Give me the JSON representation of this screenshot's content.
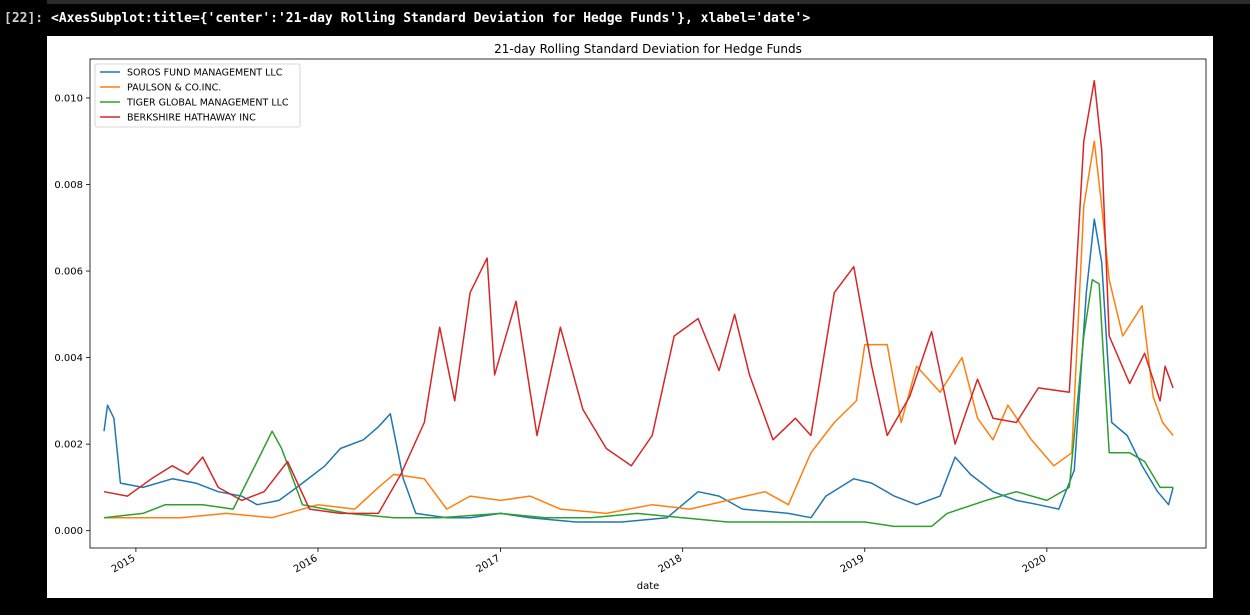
{
  "cell": {
    "prompt": "[22]:",
    "output": "<AxesSubplot:title={'center':'21-day Rolling Standard Deviation for Hedge Funds'}, xlabel='date'>"
  },
  "chart_data": {
    "type": "line",
    "title": "21-day Rolling Standard Deviation for Hedge Funds",
    "xlabel": "date",
    "ylabel": "",
    "xlim": [
      "2014-10-01",
      "2020-11-15"
    ],
    "ylim": [
      -0.0004,
      0.0109
    ],
    "x_ticks": [
      "2015-01-01",
      "2016-01-01",
      "2017-01-01",
      "2018-01-01",
      "2019-01-01",
      "2020-01-01"
    ],
    "x_tick_labels": [
      "2015",
      "2016",
      "2017",
      "2018",
      "2019",
      "2020"
    ],
    "y_ticks": [
      0.0,
      0.002,
      0.004,
      0.006,
      0.008,
      0.01
    ],
    "y_tick_labels": [
      "0.000",
      "0.002",
      "0.004",
      "0.006",
      "0.008",
      "0.010"
    ],
    "grid": false,
    "legend": "top-left",
    "series": [
      {
        "name": "SOROS FUND MANAGEMENT LLC",
        "color": "#1f77b4",
        "points": [
          [
            "2014-10-29",
            0.0023
          ],
          [
            "2014-11-05",
            0.0029
          ],
          [
            "2014-11-18",
            0.0026
          ],
          [
            "2014-12-01",
            0.0011
          ],
          [
            "2015-01-15",
            0.001
          ],
          [
            "2015-03-15",
            0.0012
          ],
          [
            "2015-05-01",
            0.0011
          ],
          [
            "2015-06-15",
            0.0009
          ],
          [
            "2015-08-01",
            0.0008
          ],
          [
            "2015-09-01",
            0.0006
          ],
          [
            "2015-10-15",
            0.0007
          ],
          [
            "2015-12-01",
            0.0011
          ],
          [
            "2016-01-15",
            0.0015
          ],
          [
            "2016-02-15",
            0.0019
          ],
          [
            "2016-04-01",
            0.0021
          ],
          [
            "2016-05-01",
            0.0024
          ],
          [
            "2016-05-25",
            0.0027
          ],
          [
            "2016-06-20",
            0.0012
          ],
          [
            "2016-07-15",
            0.0004
          ],
          [
            "2016-09-15",
            0.0003
          ],
          [
            "2016-11-01",
            0.0003
          ],
          [
            "2017-01-01",
            0.0004
          ],
          [
            "2017-03-01",
            0.0003
          ],
          [
            "2017-06-01",
            0.0002
          ],
          [
            "2017-09-01",
            0.0002
          ],
          [
            "2017-12-01",
            0.0003
          ],
          [
            "2018-02-01",
            0.0009
          ],
          [
            "2018-03-15",
            0.0008
          ],
          [
            "2018-05-01",
            0.0005
          ],
          [
            "2018-08-01",
            0.0004
          ],
          [
            "2018-09-15",
            0.0003
          ],
          [
            "2018-10-15",
            0.0008
          ],
          [
            "2018-12-10",
            0.0012
          ],
          [
            "2019-01-15",
            0.0011
          ],
          [
            "2019-03-01",
            0.0008
          ],
          [
            "2019-04-15",
            0.0006
          ],
          [
            "2019-06-01",
            0.0008
          ],
          [
            "2019-07-01",
            0.0017
          ],
          [
            "2019-08-01",
            0.0013
          ],
          [
            "2019-09-15",
            0.0009
          ],
          [
            "2019-11-01",
            0.0007
          ],
          [
            "2019-12-15",
            0.0006
          ],
          [
            "2020-01-25",
            0.0005
          ],
          [
            "2020-02-25",
            0.0014
          ],
          [
            "2020-03-20",
            0.0055
          ],
          [
            "2020-04-05",
            0.0072
          ],
          [
            "2020-04-20",
            0.0062
          ],
          [
            "2020-05-10",
            0.0025
          ],
          [
            "2020-06-10",
            0.0022
          ],
          [
            "2020-07-10",
            0.0015
          ],
          [
            "2020-08-10",
            0.0009
          ],
          [
            "2020-09-01",
            0.0006
          ],
          [
            "2020-09-10",
            0.001
          ]
        ]
      },
      {
        "name": "PAULSON & CO.INC.",
        "color": "#ff7f0e",
        "points": [
          [
            "2014-10-29",
            0.0003
          ],
          [
            "2015-01-15",
            0.0003
          ],
          [
            "2015-04-01",
            0.0003
          ],
          [
            "2015-07-01",
            0.0004
          ],
          [
            "2015-10-01",
            0.0003
          ],
          [
            "2016-01-01",
            0.0006
          ],
          [
            "2016-03-15",
            0.0005
          ],
          [
            "2016-05-01",
            0.001
          ],
          [
            "2016-06-01",
            0.0013
          ],
          [
            "2016-08-01",
            0.0012
          ],
          [
            "2016-09-15",
            0.0005
          ],
          [
            "2016-11-01",
            0.0008
          ],
          [
            "2017-01-01",
            0.0007
          ],
          [
            "2017-03-01",
            0.0008
          ],
          [
            "2017-05-01",
            0.0005
          ],
          [
            "2017-08-01",
            0.0004
          ],
          [
            "2017-11-01",
            0.0006
          ],
          [
            "2018-01-15",
            0.0005
          ],
          [
            "2018-04-01",
            0.0007
          ],
          [
            "2018-06-15",
            0.0009
          ],
          [
            "2018-08-01",
            0.0006
          ],
          [
            "2018-09-15",
            0.0018
          ],
          [
            "2018-11-01",
            0.0025
          ],
          [
            "2018-12-15",
            0.003
          ],
          [
            "2019-01-01",
            0.0043
          ],
          [
            "2019-02-15",
            0.0043
          ],
          [
            "2019-03-15",
            0.0025
          ],
          [
            "2019-04-15",
            0.0038
          ],
          [
            "2019-06-01",
            0.0032
          ],
          [
            "2019-07-15",
            0.004
          ],
          [
            "2019-08-15",
            0.0026
          ],
          [
            "2019-09-15",
            0.0021
          ],
          [
            "2019-10-15",
            0.0029
          ],
          [
            "2019-12-01",
            0.0021
          ],
          [
            "2020-01-15",
            0.0015
          ],
          [
            "2020-02-20",
            0.0018
          ],
          [
            "2020-03-15",
            0.0075
          ],
          [
            "2020-04-05",
            0.009
          ],
          [
            "2020-04-20",
            0.0075
          ],
          [
            "2020-05-05",
            0.0058
          ],
          [
            "2020-06-01",
            0.0045
          ],
          [
            "2020-07-10",
            0.0052
          ],
          [
            "2020-08-01",
            0.0031
          ],
          [
            "2020-08-20",
            0.0025
          ],
          [
            "2020-09-10",
            0.0022
          ]
        ]
      },
      {
        "name": "TIGER GLOBAL MANAGEMENT LLC",
        "color": "#2ca02c",
        "points": [
          [
            "2014-10-29",
            0.0003
          ],
          [
            "2015-01-15",
            0.0004
          ],
          [
            "2015-03-01",
            0.0006
          ],
          [
            "2015-05-15",
            0.0006
          ],
          [
            "2015-07-15",
            0.0005
          ],
          [
            "2015-09-01",
            0.0016
          ],
          [
            "2015-10-01",
            0.0023
          ],
          [
            "2015-10-20",
            0.0019
          ],
          [
            "2015-12-01",
            0.0006
          ],
          [
            "2016-03-01",
            0.0004
          ],
          [
            "2016-06-01",
            0.0003
          ],
          [
            "2016-09-01",
            0.0003
          ],
          [
            "2017-01-01",
            0.0004
          ],
          [
            "2017-04-01",
            0.0003
          ],
          [
            "2017-07-01",
            0.0003
          ],
          [
            "2017-10-01",
            0.0004
          ],
          [
            "2018-01-01",
            0.0003
          ],
          [
            "2018-04-01",
            0.0002
          ],
          [
            "2018-07-01",
            0.0002
          ],
          [
            "2018-10-01",
            0.0002
          ],
          [
            "2019-01-01",
            0.0002
          ],
          [
            "2019-03-01",
            0.0001
          ],
          [
            "2019-05-15",
            0.0001
          ],
          [
            "2019-06-15",
            0.0004
          ],
          [
            "2019-09-01",
            0.0007
          ],
          [
            "2019-11-01",
            0.0009
          ],
          [
            "2020-01-01",
            0.0007
          ],
          [
            "2020-02-15",
            0.001
          ],
          [
            "2020-03-15",
            0.0045
          ],
          [
            "2020-04-01",
            0.0058
          ],
          [
            "2020-04-15",
            0.0057
          ],
          [
            "2020-05-05",
            0.0018
          ],
          [
            "2020-06-15",
            0.0018
          ],
          [
            "2020-07-15",
            0.0016
          ],
          [
            "2020-08-15",
            0.001
          ],
          [
            "2020-09-10",
            0.001
          ]
        ]
      },
      {
        "name": "BERKSHIRE HATHAWAY INC",
        "color": "#d62728",
        "points": [
          [
            "2014-10-29",
            0.0009
          ],
          [
            "2014-12-15",
            0.0008
          ],
          [
            "2015-02-01",
            0.0012
          ],
          [
            "2015-03-15",
            0.0015
          ],
          [
            "2015-04-15",
            0.0013
          ],
          [
            "2015-05-15",
            0.0017
          ],
          [
            "2015-06-15",
            0.001
          ],
          [
            "2015-08-01",
            0.0007
          ],
          [
            "2015-09-15",
            0.0009
          ],
          [
            "2015-11-01",
            0.0016
          ],
          [
            "2015-12-15",
            0.0005
          ],
          [
            "2016-02-15",
            0.0004
          ],
          [
            "2016-05-01",
            0.0004
          ],
          [
            "2016-06-15",
            0.0013
          ],
          [
            "2016-08-01",
            0.0025
          ],
          [
            "2016-09-01",
            0.0047
          ],
          [
            "2016-10-01",
            0.003
          ],
          [
            "2016-11-01",
            0.0055
          ],
          [
            "2016-12-05",
            0.0063
          ],
          [
            "2016-12-20",
            0.0036
          ],
          [
            "2017-02-01",
            0.0053
          ],
          [
            "2017-03-15",
            0.0022
          ],
          [
            "2017-05-01",
            0.0047
          ],
          [
            "2017-06-15",
            0.0028
          ],
          [
            "2017-08-01",
            0.0019
          ],
          [
            "2017-09-20",
            0.0015
          ],
          [
            "2017-11-01",
            0.0022
          ],
          [
            "2017-12-15",
            0.0045
          ],
          [
            "2018-02-01",
            0.0049
          ],
          [
            "2018-03-15",
            0.0037
          ],
          [
            "2018-04-15",
            0.005
          ],
          [
            "2018-05-15",
            0.0036
          ],
          [
            "2018-07-01",
            0.0021
          ],
          [
            "2018-08-15",
            0.0026
          ],
          [
            "2018-09-15",
            0.0022
          ],
          [
            "2018-11-01",
            0.0055
          ],
          [
            "2018-12-10",
            0.0061
          ],
          [
            "2019-01-15",
            0.0038
          ],
          [
            "2019-02-15",
            0.0022
          ],
          [
            "2019-04-01",
            0.0031
          ],
          [
            "2019-05-15",
            0.0046
          ],
          [
            "2019-07-01",
            0.002
          ],
          [
            "2019-08-15",
            0.0035
          ],
          [
            "2019-09-15",
            0.0026
          ],
          [
            "2019-11-01",
            0.0025
          ],
          [
            "2019-12-15",
            0.0033
          ],
          [
            "2020-02-15",
            0.0032
          ],
          [
            "2020-03-15",
            0.009
          ],
          [
            "2020-04-05",
            0.0104
          ],
          [
            "2020-04-20",
            0.0088
          ],
          [
            "2020-05-05",
            0.0045
          ],
          [
            "2020-06-15",
            0.0034
          ],
          [
            "2020-07-15",
            0.0041
          ],
          [
            "2020-08-15",
            0.003
          ],
          [
            "2020-08-25",
            0.0038
          ],
          [
            "2020-09-10",
            0.0033
          ]
        ]
      }
    ]
  }
}
